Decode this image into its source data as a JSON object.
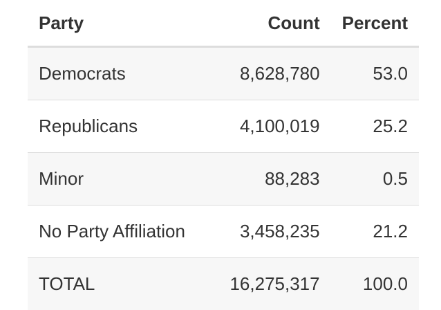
{
  "table": {
    "header": [
      "Party",
      "Count",
      "Percent"
    ],
    "rows": [
      [
        "Democrats",
        "8,628,780",
        "53.0"
      ],
      [
        "Republicans",
        "4,100,019",
        "25.2"
      ],
      [
        "Minor",
        "88,283",
        "0.5"
      ],
      [
        "No Party Affiliation",
        "3,458,235",
        "21.2"
      ],
      [
        "TOTAL",
        "16,275,317",
        "100.0"
      ]
    ]
  }
}
